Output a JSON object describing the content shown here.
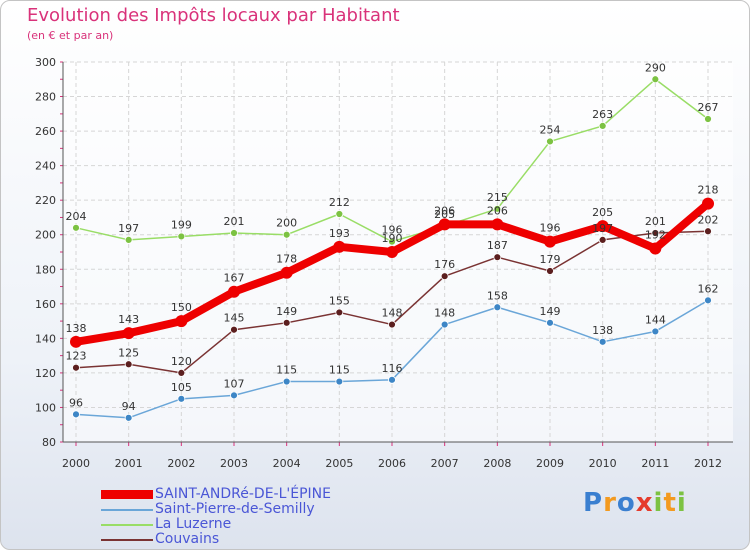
{
  "title": "Evolution des Impôts locaux par Habitant",
  "subtitle": "(en € et par an)",
  "logo": {
    "letters": [
      "P",
      "r",
      "o",
      "x",
      "i",
      "t",
      "i"
    ],
    "colors": [
      "#3a7fd0",
      "#f39a1f",
      "#3a7fd0",
      "#e53b2c",
      "#7cc242",
      "#f39a1f",
      "#7cc242"
    ]
  },
  "chart_data": {
    "type": "line",
    "title": "Evolution des Impôts locaux par Habitant",
    "subtitle": "(en € et par an)",
    "x": [
      "2000",
      "2001",
      "2002",
      "2003",
      "2004",
      "2005",
      "2006",
      "2007",
      "2008",
      "2009",
      "2010",
      "2011",
      "2012"
    ],
    "ylim": [
      80,
      300
    ],
    "yticks": [
      80,
      100,
      120,
      140,
      160,
      180,
      200,
      220,
      240,
      260,
      280,
      300
    ],
    "grid": true,
    "legend_position": "bottom-left",
    "series": [
      {
        "name": "SAINT-ANDRé-DE-L'ÉPINE",
        "color": "#ee0000",
        "point_color": "#ee0000",
        "width": 8,
        "radius": 6,
        "values": [
          138,
          143,
          150,
          167,
          178,
          193,
          190,
          206,
          206,
          196,
          205,
          192,
          218
        ],
        "labels": [
          "138",
          "143",
          "150",
          "167",
          "178",
          "193",
          "190",
          "206",
          "206",
          "196",
          "205",
          "192",
          "218"
        ]
      },
      {
        "name": "Saint-Pierre-de-Semilly",
        "color": "#6aa6d8",
        "point_color": "#3d86c6",
        "width": 1.5,
        "radius": 3.5,
        "values": [
          96,
          94,
          105,
          107,
          115,
          115,
          116,
          148,
          158,
          149,
          138,
          144,
          162
        ],
        "labels": [
          "96",
          "94",
          "105",
          "107",
          "115",
          "115",
          "116",
          "148",
          "158",
          "149",
          "138",
          "144",
          "162"
        ]
      },
      {
        "name": "La Luzerne",
        "color": "#99dd66",
        "point_color": "#7cc242",
        "width": 1.5,
        "radius": 3.5,
        "values": [
          204,
          197,
          199,
          201,
          200,
          212,
          196,
          205,
          215,
          254,
          263,
          290,
          267
        ],
        "labels": [
          "204",
          "197",
          "199",
          "201",
          "200",
          "212",
          "196",
          "205",
          "215",
          "254",
          "263",
          "290",
          "267"
        ]
      },
      {
        "name": "Couvains",
        "color": "#7a3333",
        "point_color": "#5c1f1f",
        "width": 1.5,
        "radius": 3.5,
        "values": [
          123,
          125,
          120,
          145,
          149,
          155,
          148,
          176,
          187,
          179,
          197,
          201,
          202
        ],
        "labels": [
          "123",
          "125",
          "120",
          "145",
          "149",
          "155",
          "148",
          "176",
          "187",
          "179",
          "197",
          "201",
          "202"
        ]
      }
    ]
  }
}
